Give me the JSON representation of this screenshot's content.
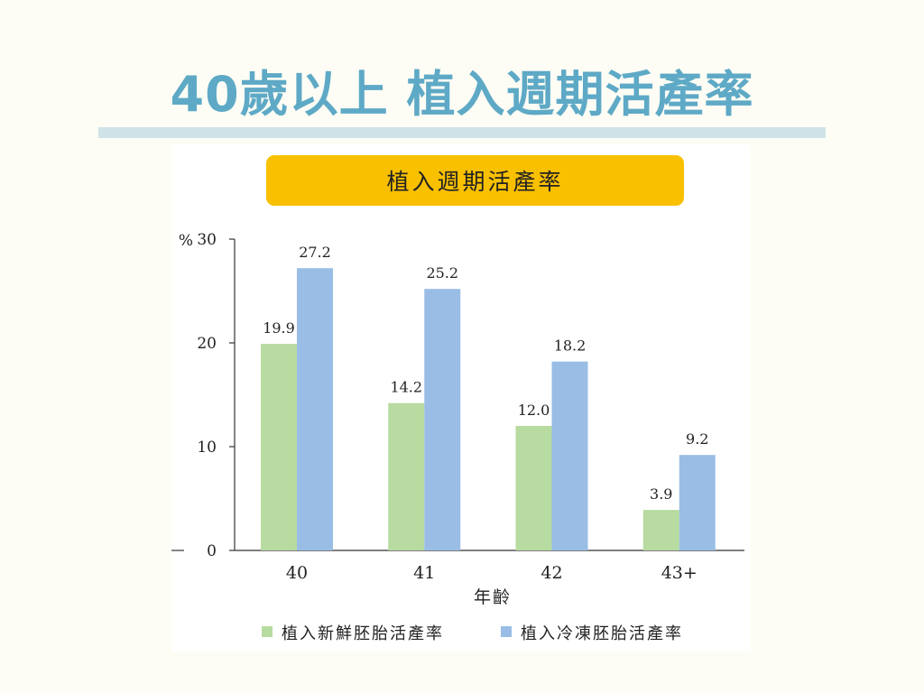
{
  "slide": {
    "title": "40歲以上 植入週期活產率"
  },
  "chart_data": {
    "type": "bar",
    "title": "植入週期活產率",
    "xlabel": "年齡",
    "ylabel": "%",
    "categories": [
      "40",
      "41",
      "42",
      "43+"
    ],
    "series": [
      {
        "name": "植入新鮮胚胎活產率",
        "values": [
          19.9,
          14.2,
          12.0,
          3.9
        ],
        "labels": [
          "19.9",
          "14.2",
          "12.0",
          "3.9"
        ],
        "color": "#b7dba0"
      },
      {
        "name": "植入冷凍胚胎活產率",
        "values": [
          27.2,
          25.2,
          18.2,
          9.2
        ],
        "labels": [
          "27.2",
          "25.2",
          "18.2",
          "9.2"
        ],
        "color": "#99bde5"
      }
    ],
    "ylim": [
      0,
      30
    ],
    "yticks": [
      0,
      10,
      20,
      30
    ],
    "grid": false,
    "legend": "bottom",
    "colors": {
      "axis": "#333333",
      "banner": "#f9c000",
      "title": "#5ea9c6"
    }
  }
}
